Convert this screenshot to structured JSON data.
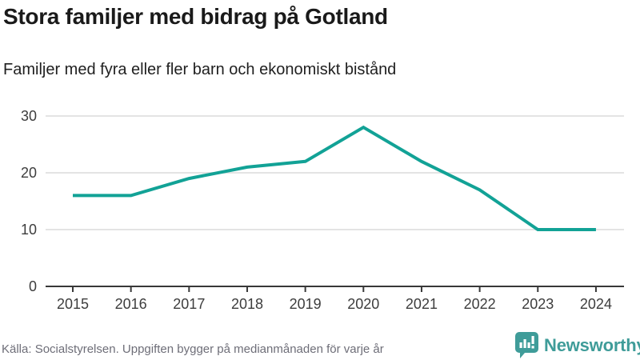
{
  "header": {
    "title": "Stora familjer med bidrag på Gotland",
    "subtitle": "Familjer med fyra eller fler barn och ekonomiskt bistånd"
  },
  "chart_data": {
    "type": "line",
    "title": "Stora familjer med bidrag på Gotland",
    "subtitle": "Familjer med fyra eller fler barn och ekonomiskt bistånd",
    "x": [
      2015,
      2016,
      2017,
      2018,
      2019,
      2020,
      2021,
      2022,
      2023,
      2024
    ],
    "series": [
      {
        "name": "Familjer med fyra eller fler barn och ekonomiskt bistånd",
        "values": [
          16,
          16,
          19,
          21,
          22,
          28,
          22,
          17,
          10,
          10
        ]
      }
    ],
    "xlabel": "",
    "ylabel": "",
    "ylim": [
      0,
      30
    ],
    "yticks": [
      0,
      10,
      20,
      30
    ],
    "grid": "horizontal",
    "legend_position": "none",
    "line_color": "#12a296"
  },
  "footer": {
    "source": "Källa: Socialstyrelsen. Uppgiften bygger på medianmånaden för varje år",
    "logo_text": "Newsworthy"
  },
  "colors": {
    "line": "#12a296",
    "gridline": "#e4e4e4",
    "axis": "#383838",
    "tick_label": "#3d3d3d",
    "title": "#1a1a1a",
    "source_text": "#6e6e78",
    "logo_teal": "#3f9c99"
  },
  "icons": {
    "logo_icon": "newsworthy-speech-bubble-barchart-icon"
  }
}
